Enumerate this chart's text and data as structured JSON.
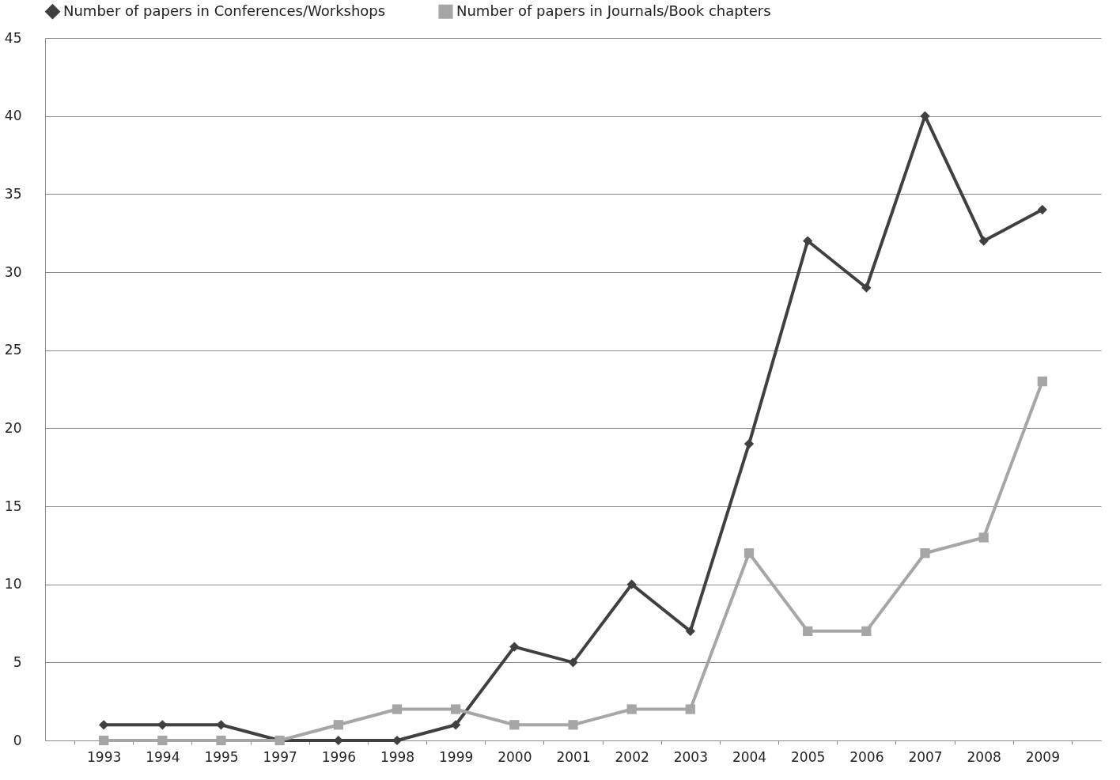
{
  "chart_data": {
    "type": "line",
    "categories": [
      "1993",
      "1994",
      "1995",
      "1997",
      "1996",
      "1998",
      "1999",
      "2000",
      "2001",
      "2002",
      "2003",
      "2004",
      "2005",
      "2006",
      "2007",
      "2008",
      "2009"
    ],
    "series": [
      {
        "name": "Number of papers in Conferences/Workshops",
        "color": "#404040",
        "marker": "diamond",
        "values": [
          1,
          1,
          1,
          0,
          0,
          0,
          1,
          6,
          5,
          10,
          7,
          19,
          32,
          29,
          40,
          32,
          34
        ]
      },
      {
        "name": "Number of papers in Journals/Book chapters",
        "color": "#a6a6a6",
        "marker": "square",
        "values": [
          0,
          0,
          0,
          0,
          1,
          2,
          2,
          1,
          1,
          2,
          2,
          12,
          7,
          7,
          12,
          13,
          23
        ]
      }
    ],
    "ylim": [
      0,
      45
    ],
    "yticks": [
      0,
      5,
      10,
      15,
      20,
      25,
      30,
      35,
      40,
      45
    ],
    "grid": "y",
    "legend": "top",
    "line_style": "solid"
  }
}
